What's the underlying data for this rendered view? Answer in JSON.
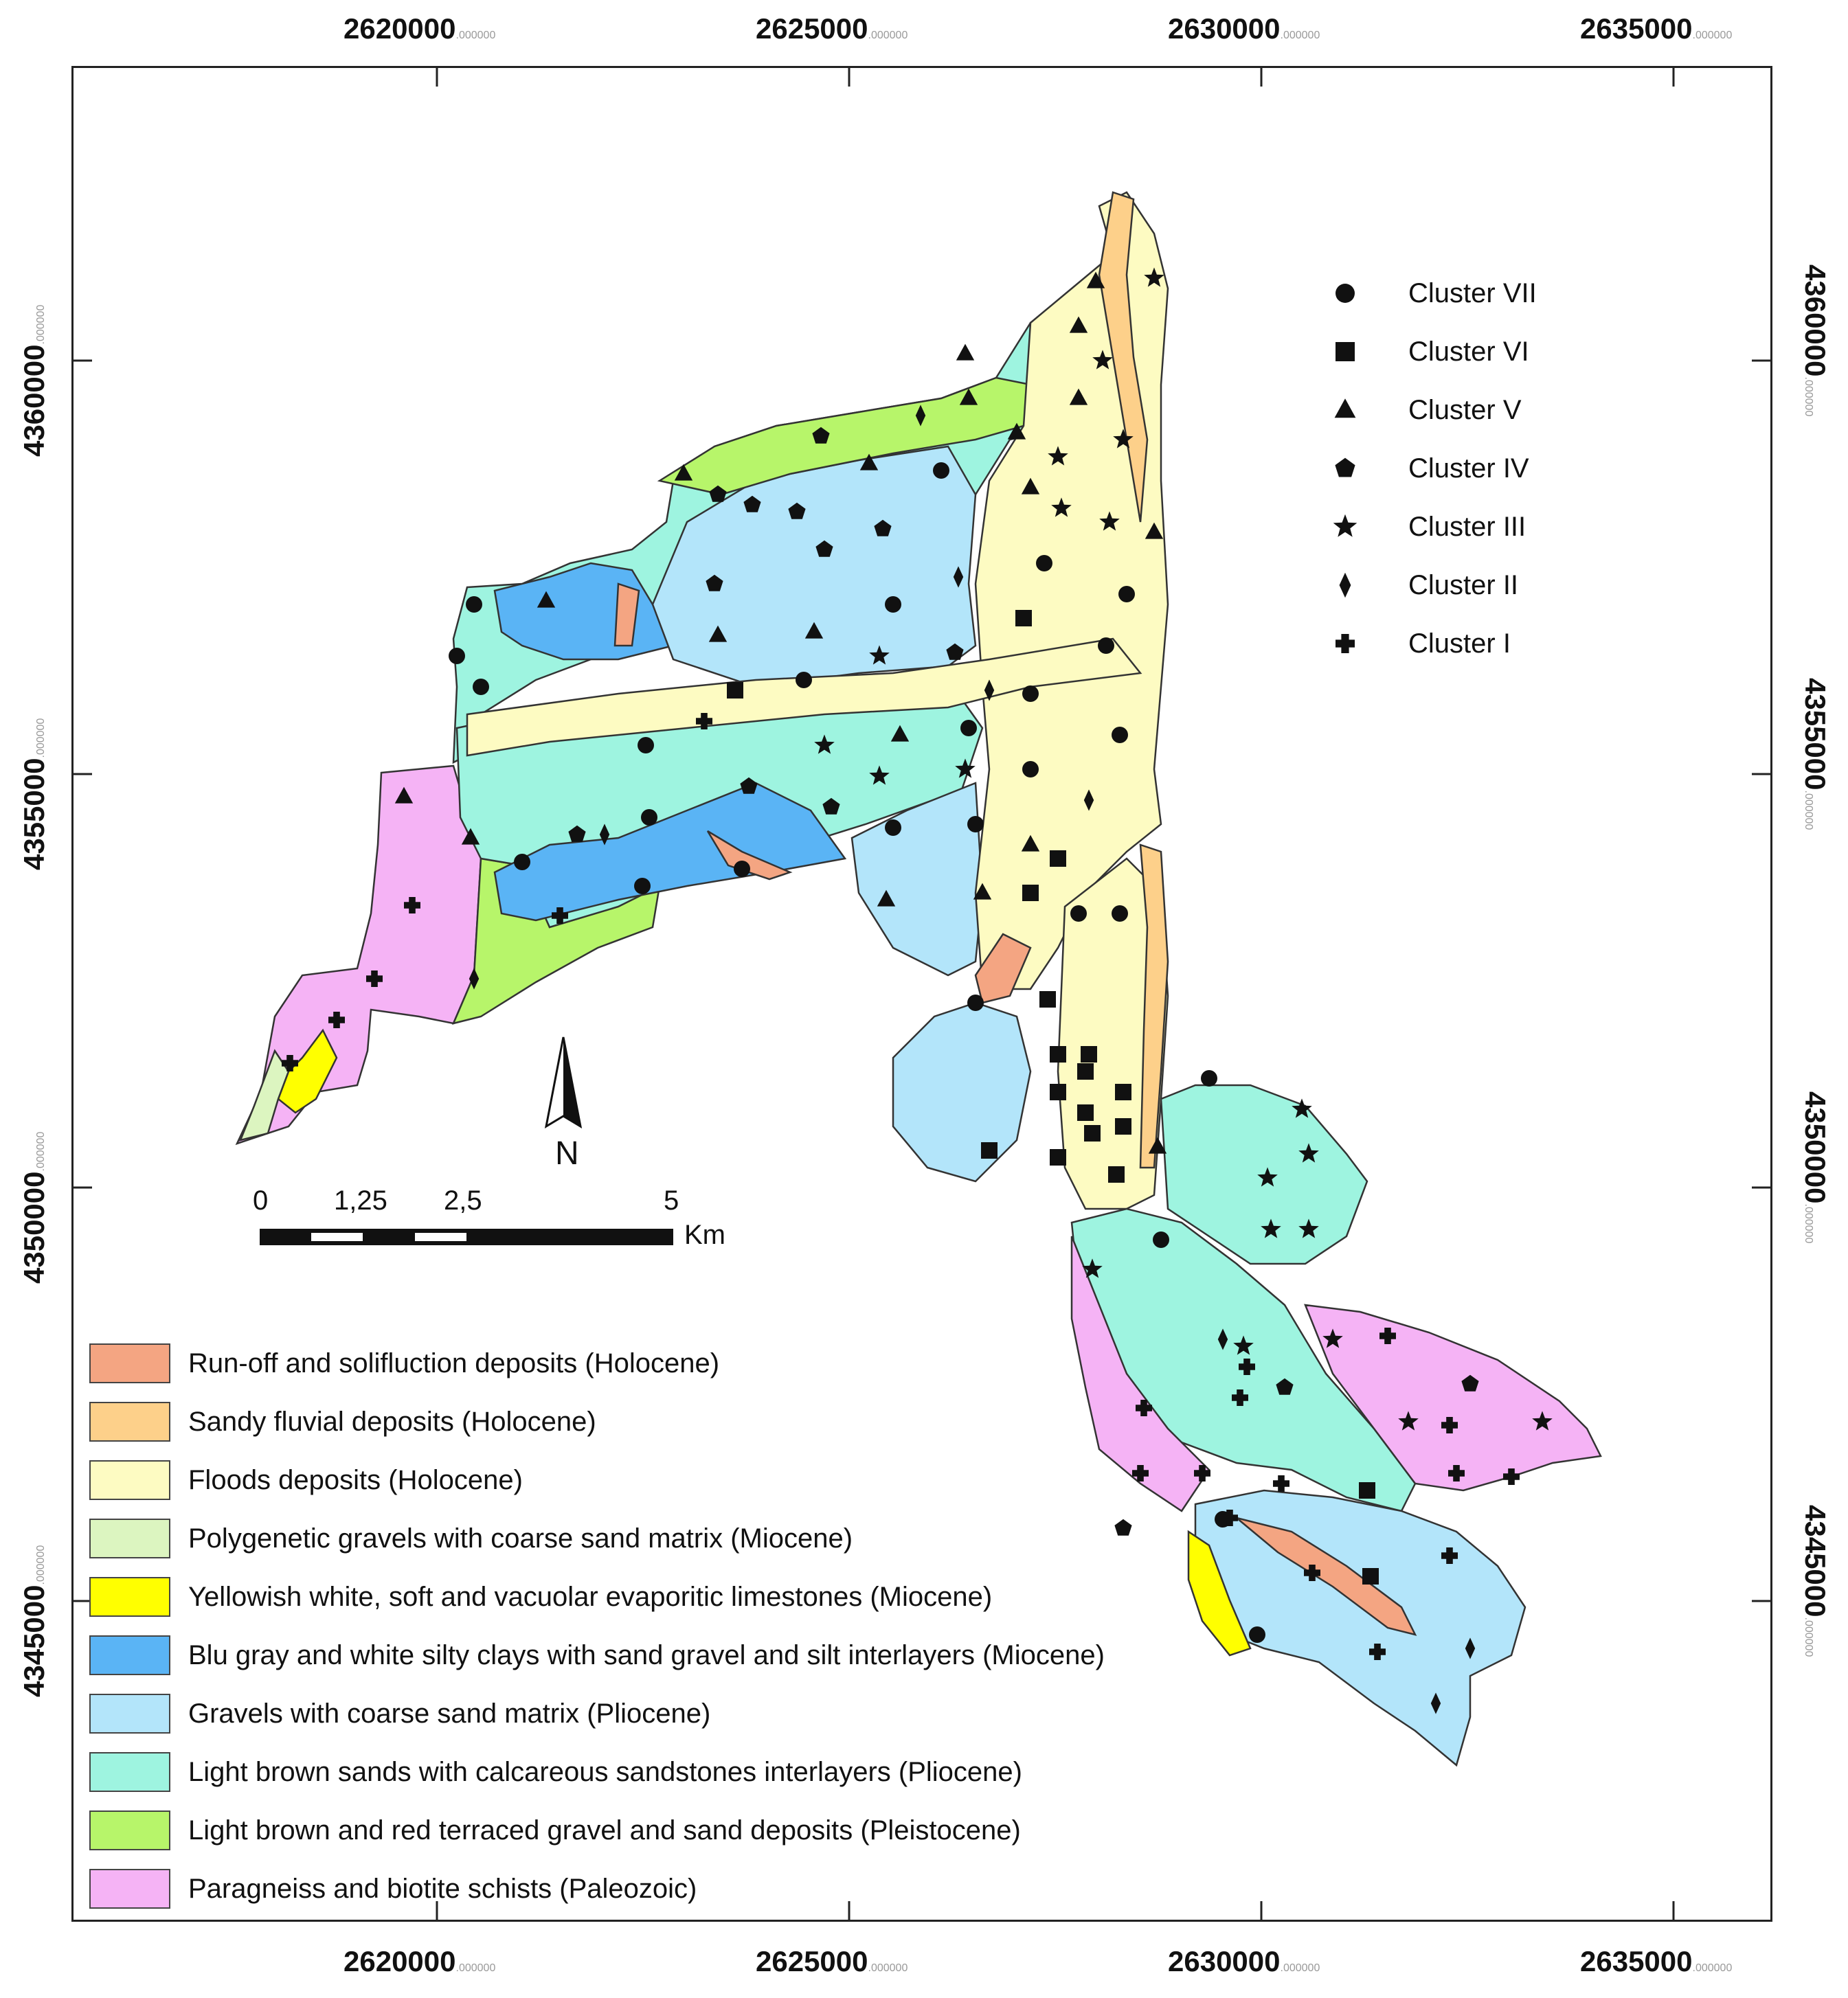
{
  "grid": {
    "x_ticks": [
      {
        "label": "2620000",
        "dec": ".000000"
      },
      {
        "label": "2625000",
        "dec": ".000000"
      },
      {
        "label": "2630000",
        "dec": ".000000"
      },
      {
        "label": "2635000",
        "dec": ".000000"
      }
    ],
    "y_ticks": [
      {
        "label": "4360000",
        "dec": ".000000"
      },
      {
        "label": "4355000",
        "dec": ".000000"
      },
      {
        "label": "4350000",
        "dec": ".000000"
      },
      {
        "label": "4345000",
        "dec": ".000000"
      }
    ]
  },
  "clusters": [
    {
      "label": "Cluster VII",
      "symbol": "circle"
    },
    {
      "label": "Cluster VI",
      "symbol": "square"
    },
    {
      "label": "Cluster V",
      "symbol": "triangle"
    },
    {
      "label": "Cluster IV",
      "symbol": "pentagon"
    },
    {
      "label": "Cluster III",
      "symbol": "star"
    },
    {
      "label": "Cluster II",
      "symbol": "diamond"
    },
    {
      "label": "Cluster I",
      "symbol": "cross"
    }
  ],
  "scale_bar": {
    "labels": [
      "0",
      "1,25",
      "2,5",
      "5"
    ],
    "unit": "Km"
  },
  "north_label": "N",
  "legend": [
    {
      "label": "Run-off and solifluction deposits (Holocene)",
      "color": "#f4a582"
    },
    {
      "label": "Sandy fluvial deposits (Holocene)",
      "color": "#fdd08a"
    },
    {
      "label": "Floods deposits (Holocene)",
      "color": "#fdfbc2"
    },
    {
      "label": "Polygenetic gravels with coarse sand matrix (Miocene)",
      "color": "#dcf5c0"
    },
    {
      "label": "Yellowish white, soft and vacuolar evaporitic limestones (Miocene)",
      "color": "#ffff00"
    },
    {
      "label": "Blu gray and white silty clays with sand gravel and silt interlayers (Miocene)",
      "color": "#5ab4f5"
    },
    {
      "label": "Gravels with coarse sand matrix (Pliocene)",
      "color": "#b3e5fa"
    },
    {
      "label": "Light brown sands with calcareous sandstones interlayers (Pliocene)",
      "color": "#9ef4e0"
    },
    {
      "label": "Light brown and red terraced gravel and sand deposits (Pleistocene)",
      "color": "#b7f56a"
    },
    {
      "label": "Paragneiss and biotite schists (Paleozoic)",
      "color": "#f5b3f5"
    }
  ]
}
